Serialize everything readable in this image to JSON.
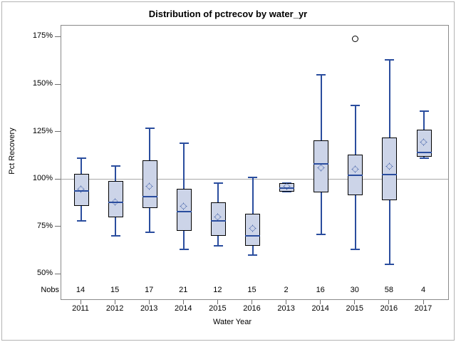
{
  "chart_data": {
    "type": "boxplot",
    "title": "Distribution of pctrecov by water_yr",
    "xlabel": "Water Year",
    "ylabel": "Pct Recovery",
    "nobs_header": "Nobs",
    "y_ticks": [
      175,
      150,
      125,
      100,
      75,
      50
    ],
    "y_tick_suffix": "%",
    "ylim": [
      36,
      181
    ],
    "reference_line": 100,
    "grid": "off",
    "legend": "none",
    "colors": {
      "box_fill": "#ccd4e8",
      "box_border": "#000000",
      "whisker": "#2a4d9e",
      "median": "#2a4d9e",
      "mean_marker": "#2a4d9e",
      "reference_line": "#a9a9a9",
      "axis": "#8a8a8a",
      "outlier": "#000000"
    },
    "boxes": [
      {
        "category": "2011",
        "nobs": "14",
        "min": 78,
        "q1": 86,
        "median": 94,
        "q3": 103,
        "max": 111,
        "mean": 94.5,
        "outliers": []
      },
      {
        "category": "2012",
        "nobs": "15",
        "min": 70,
        "q1": 80,
        "median": 88,
        "q3": 99,
        "max": 107,
        "mean": 88,
        "outliers": []
      },
      {
        "category": "2013",
        "nobs": "17",
        "min": 72,
        "q1": 85,
        "median": 91,
        "q3": 110,
        "max": 127,
        "mean": 96,
        "outliers": []
      },
      {
        "category": "2014",
        "nobs": "21",
        "min": 63,
        "q1": 73,
        "median": 83,
        "q3": 95,
        "max": 119,
        "mean": 85.5,
        "outliers": []
      },
      {
        "category": "2015",
        "nobs": "12",
        "min": 65,
        "q1": 70,
        "median": 78,
        "q3": 88,
        "max": 98,
        "mean": 80,
        "outliers": []
      },
      {
        "category": "2016",
        "nobs": "15",
        "min": 60,
        "q1": 65,
        "median": 70,
        "q3": 82,
        "max": 101,
        "mean": 74,
        "outliers": []
      },
      {
        "category": "2013",
        "nobs": "2",
        "min": 93.5,
        "q1": 93.5,
        "median": 95.5,
        "q3": 98,
        "max": 98,
        "mean": 96,
        "outliers": []
      },
      {
        "category": "2014",
        "nobs": "16",
        "min": 71,
        "q1": 93,
        "median": 108,
        "q3": 120.5,
        "max": 155,
        "mean": 106,
        "outliers": []
      },
      {
        "category": "2015",
        "nobs": "30",
        "min": 63,
        "q1": 91.5,
        "median": 102,
        "q3": 113,
        "max": 139,
        "mean": 105,
        "outliers": [
          174
        ]
      },
      {
        "category": "2016",
        "nobs": "58",
        "min": 55,
        "q1": 89,
        "median": 102.5,
        "q3": 122,
        "max": 163,
        "mean": 106.5,
        "outliers": []
      },
      {
        "category": "2017",
        "nobs": "4",
        "min": 111,
        "q1": 112,
        "median": 114,
        "q3": 126,
        "max": 136,
        "mean": 119.5,
        "outliers": []
      }
    ]
  }
}
